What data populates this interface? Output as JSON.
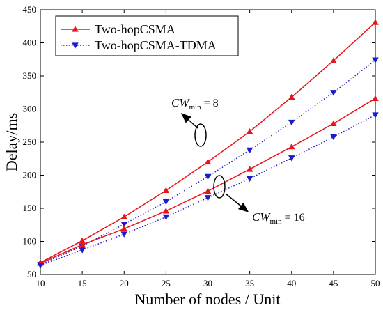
{
  "chart_data": {
    "type": "line",
    "xlabel": "Number of nodes / Unit",
    "ylabel": "Delay/ms",
    "x": [
      10,
      15,
      20,
      25,
      30,
      35,
      40,
      45,
      50
    ],
    "xlim": [
      10,
      50
    ],
    "ylim": [
      50,
      450
    ],
    "xticks": [
      10,
      15,
      20,
      25,
      30,
      35,
      40,
      45,
      50
    ],
    "yticks": [
      50,
      100,
      150,
      200,
      250,
      300,
      350,
      400,
      450
    ],
    "grid": false,
    "legend_position": "top-left",
    "series": [
      {
        "name": "Two-hopCSMA",
        "group": "CWmin=8",
        "color": "#e8131b",
        "style": "solid",
        "marker": "triangle-up",
        "values": [
          68,
          101,
          137,
          177,
          220,
          266,
          318,
          373,
          431
        ]
      },
      {
        "name": "Two-hopCSMA-TDMA",
        "group": "CWmin=8",
        "color": "#1b1bc8",
        "style": "dotted",
        "marker": "triangle-down",
        "values": [
          65,
          93,
          126,
          160,
          198,
          238,
          280,
          325,
          374
        ]
      },
      {
        "name": "Two-hopCSMA",
        "group": "CWmin=16",
        "color": "#e8131b",
        "style": "solid",
        "marker": "triangle-up",
        "values": [
          67,
          95,
          119,
          146,
          176,
          209,
          243,
          278,
          316
        ]
      },
      {
        "name": "Two-hopCSMA-TDMA",
        "group": "CWmin=16",
        "color": "#1b1bc8",
        "style": "dotted",
        "marker": "triangle-down",
        "values": [
          64,
          87,
          111,
          137,
          166,
          195,
          226,
          258,
          291
        ]
      }
    ],
    "legend": [
      {
        "label": "Two-hopCSMA",
        "color": "#e8131b",
        "style": "solid",
        "marker": "triangle-up"
      },
      {
        "label": "Two-hopCSMA-TDMA",
        "color": "#1b1bc8",
        "style": "dotted",
        "marker": "triangle-down"
      }
    ],
    "annotations": [
      {
        "main": "CW",
        "sub": "min",
        "rest": "= 8"
      },
      {
        "main": "CW",
        "sub": "min",
        "rest": "= 16"
      }
    ]
  }
}
